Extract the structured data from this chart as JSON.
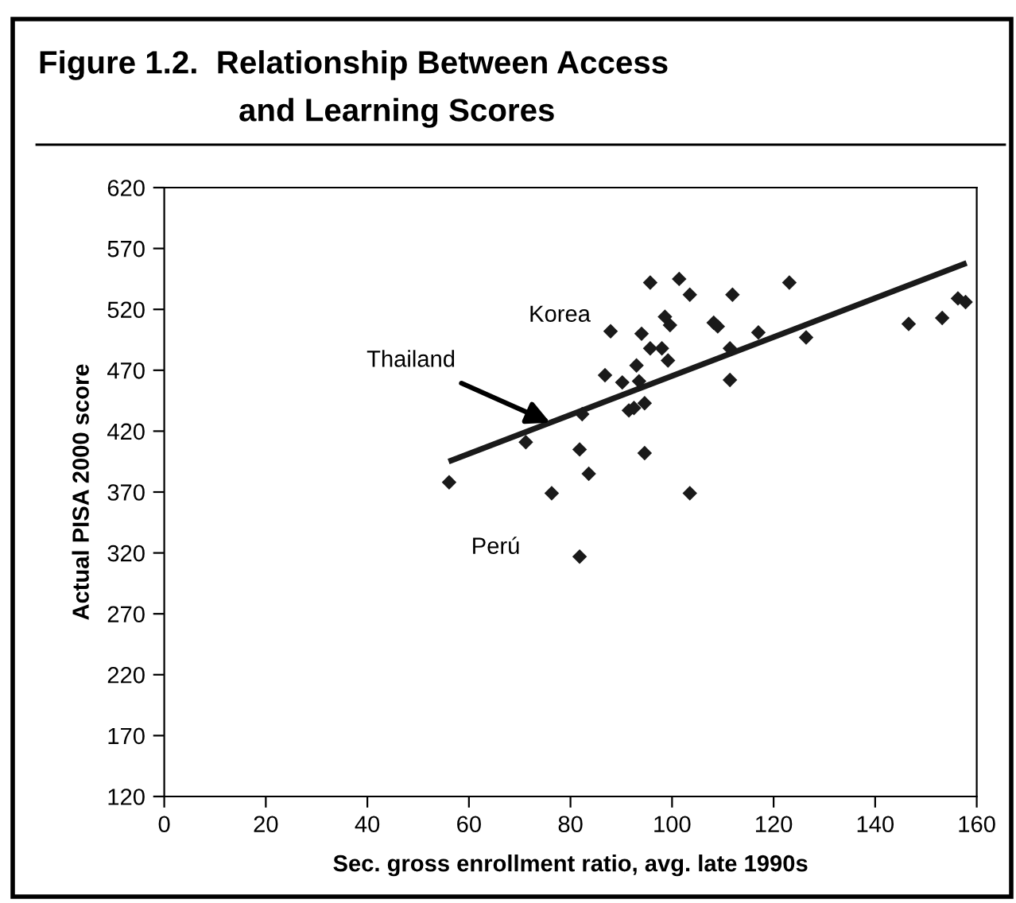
{
  "chart_data": {
    "type": "scatter",
    "title": "Figure 1.2.  Relationship Between Access\nand Learning Scores",
    "xlabel": "Sec. gross enrollment ratio, avg. late 1990s",
    "ylabel": "Actual PISA 2000 score",
    "xlim": [
      0,
      160
    ],
    "xticks": [
      0,
      20,
      40,
      60,
      80,
      100,
      120,
      140,
      160
    ],
    "ylim": [
      120,
      620
    ],
    "yticks": [
      120,
      170,
      220,
      270,
      320,
      370,
      420,
      470,
      520,
      570,
      620
    ],
    "grid": false,
    "marker": "diamond",
    "series": [
      {
        "color": "#1a1a1a",
        "x": [
          95.7,
          101.4,
          103.5,
          87.9,
          94.0,
          98.6,
          99.6,
          95.7,
          98.0,
          99.2,
          93.0,
          86.8,
          90.2,
          93.5,
          94.6,
          91.5,
          92.5,
          82.3,
          71.2,
          81.8,
          94.6,
          83.6,
          56.1,
          76.3,
          103.5,
          81.8,
          111.9,
          123.1,
          108.2,
          109.0,
          117.0,
          126.4,
          111.4,
          111.4,
          146.6,
          153.2,
          156.3,
          157.8
        ],
        "values": [
          542,
          545,
          532,
          502,
          500,
          514,
          507,
          488,
          488,
          478,
          474,
          466,
          460,
          461,
          443,
          437,
          439,
          434,
          411,
          405,
          402,
          385,
          378,
          369,
          369,
          317,
          532,
          542,
          509,
          506,
          501,
          497,
          488,
          462,
          508,
          513,
          529,
          526
        ]
      },
      {
        "type": "line",
        "color": "#1a1a1a",
        "marker": "none",
        "x": [
          56,
          158
        ],
        "values": [
          395,
          558
        ]
      }
    ],
    "annotations": [
      {
        "text": "Korea",
        "x": 95.7,
        "y": 542
      },
      {
        "text": "Thailand",
        "x": 76,
        "y": 427
      },
      {
        "text": "Perú",
        "x": 81.8,
        "y": 317
      }
    ]
  }
}
